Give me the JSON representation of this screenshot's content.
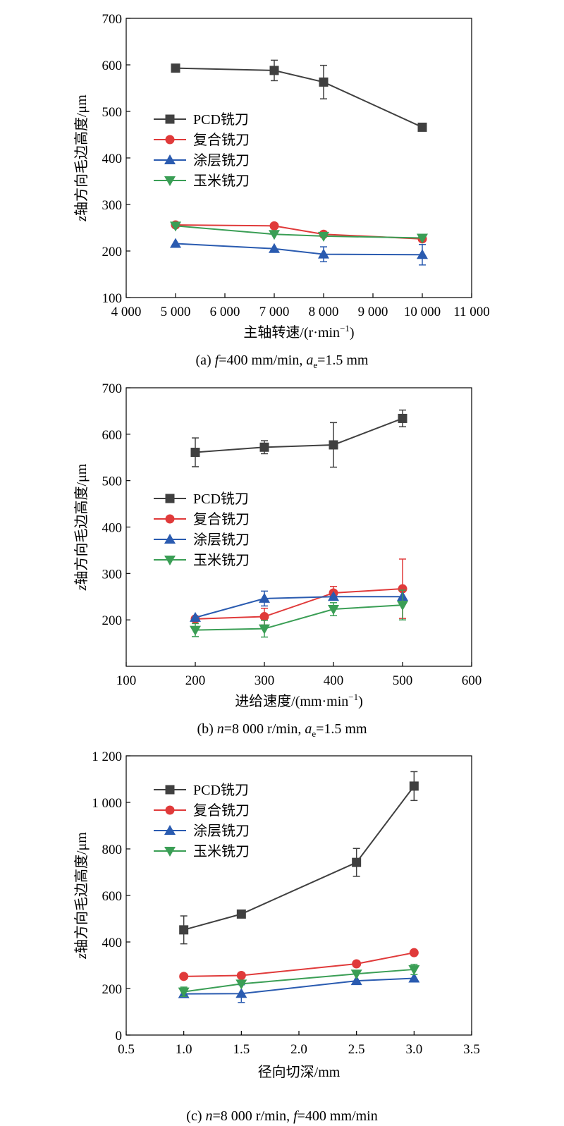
{
  "chart_data": [
    {
      "type": "line",
      "xlabel": "主轴转速/(r·min",
      "xlabel_sup": "−1",
      "xlabel_close": ")",
      "ylabel_italic": "z",
      "ylabel": "轴方向毛边高度/μm",
      "caption": {
        "prefix": "(a) ",
        "parts": [
          {
            "t": "f",
            "i": true
          },
          {
            "t": "=400 mm/min, "
          },
          {
            "t": "a",
            "i": true
          },
          {
            "t": "e",
            "sub": true
          },
          {
            "t": "=1.5 mm"
          }
        ]
      },
      "xlim": [
        4000,
        11000
      ],
      "ylim": [
        100,
        700
      ],
      "xticks": [
        4000,
        5000,
        6000,
        7000,
        8000,
        9000,
        10000,
        11000
      ],
      "xtick_labels": [
        "4 000",
        "5 000",
        "6 000",
        "7 000",
        "8 000",
        "9 000",
        "10 000",
        "11 000"
      ],
      "yticks": [
        100,
        200,
        300,
        400,
        500,
        600,
        700
      ],
      "ytick_labels": [
        "100",
        "200",
        "300",
        "400",
        "500",
        "600",
        "700"
      ],
      "x": [
        5000,
        7000,
        8000,
        10000
      ],
      "series": [
        {
          "name": "PCD铣刀",
          "color": "#404040",
          "marker": "square",
          "values": [
            593,
            588,
            563,
            466
          ],
          "err": [
            0,
            22,
            36,
            0
          ]
        },
        {
          "name": "复合铣刀",
          "color": "#e03a3a",
          "marker": "circle",
          "values": [
            256,
            254,
            236,
            226
          ],
          "err": [
            0,
            0,
            0,
            0
          ]
        },
        {
          "name": "涂层铣刀",
          "color": "#2a5bb0",
          "marker": "triangle-up",
          "values": [
            216,
            205,
            193,
            192
          ],
          "err": [
            0,
            0,
            16,
            22
          ]
        },
        {
          "name": "玉米铣刀",
          "color": "#3a9e55",
          "marker": "triangle-down",
          "values": [
            254,
            236,
            232,
            228
          ],
          "err": [
            0,
            0,
            0,
            0
          ]
        }
      ],
      "legend": "left-middle"
    },
    {
      "type": "line",
      "xlabel": "进给速度/(mm·min",
      "xlabel_sup": "−1",
      "xlabel_close": ")",
      "ylabel_italic": "z",
      "ylabel": "轴方向毛边高度/μm",
      "caption": {
        "prefix": "(b) ",
        "parts": [
          {
            "t": "n",
            "i": true
          },
          {
            "t": "=8 000 r/min, "
          },
          {
            "t": "a",
            "i": true
          },
          {
            "t": "e",
            "sub": true
          },
          {
            "t": "=1.5 mm"
          }
        ]
      },
      "xlim": [
        100,
        600
      ],
      "ylim": [
        100,
        700
      ],
      "xticks": [
        100,
        200,
        300,
        400,
        500,
        600
      ],
      "xtick_labels": [
        "100",
        "200",
        "300",
        "400",
        "500",
        "600"
      ],
      "yticks": [
        200,
        300,
        400,
        500,
        600,
        700
      ],
      "ytick_labels": [
        "200",
        "300",
        "400",
        "500",
        "600",
        "700"
      ],
      "x": [
        200,
        300,
        400,
        500
      ],
      "series": [
        {
          "name": "PCD铣刀",
          "color": "#404040",
          "marker": "square",
          "values": [
            561,
            572,
            577,
            634
          ],
          "err": [
            31,
            14,
            48,
            18
          ]
        },
        {
          "name": "复合铣刀",
          "color": "#e03a3a",
          "marker": "circle",
          "values": [
            202,
            207,
            258,
            267
          ],
          "err": [
            0,
            18,
            14,
            64
          ]
        },
        {
          "name": "涂层铣刀",
          "color": "#2a5bb0",
          "marker": "triangle-up",
          "values": [
            205,
            246,
            250,
            250
          ],
          "err": [
            0,
            16,
            0,
            0
          ]
        },
        {
          "name": "玉米铣刀",
          "color": "#3a9e55",
          "marker": "triangle-down",
          "values": [
            178,
            181,
            223,
            232
          ],
          "err": [
            14,
            18,
            14,
            32
          ]
        }
      ],
      "legend": "left-middle"
    },
    {
      "type": "line",
      "xlabel": "径向切深/mm",
      "xlabel_sup": "",
      "xlabel_close": "",
      "ylabel_italic": "z",
      "ylabel": "轴方向毛边高度/μm",
      "caption": {
        "prefix": "(c) ",
        "parts": [
          {
            "t": "n",
            "i": true
          },
          {
            "t": "=8 000 r/min, "
          },
          {
            "t": "f",
            "i": true
          },
          {
            "t": "=400 mm/min"
          }
        ]
      },
      "xlim": [
        0.5,
        3.5
      ],
      "ylim": [
        0,
        1200
      ],
      "xticks": [
        0.5,
        1.0,
        1.5,
        2.0,
        2.5,
        3.0,
        3.5
      ],
      "xtick_labels": [
        "0.5",
        "1.0",
        "1.5",
        "2.0",
        "2.5",
        "3.0",
        "3.5"
      ],
      "yticks": [
        0,
        200,
        400,
        600,
        800,
        1000,
        1200
      ],
      "ytick_labels": [
        "0",
        "200",
        "400",
        "600",
        "800",
        "1 000",
        "1 200"
      ],
      "x": [
        1.0,
        1.5,
        2.5,
        3.0
      ],
      "series": [
        {
          "name": "PCD铣刀",
          "color": "#404040",
          "marker": "square",
          "values": [
            452,
            520,
            742,
            1070
          ],
          "err": [
            60,
            0,
            60,
            62
          ]
        },
        {
          "name": "复合铣刀",
          "color": "#e03a3a",
          "marker": "circle",
          "values": [
            252,
            256,
            306,
            354
          ],
          "err": [
            0,
            0,
            0,
            0
          ]
        },
        {
          "name": "涂层铣刀",
          "color": "#2a5bb0",
          "marker": "triangle-up",
          "values": [
            177,
            178,
            233,
            244
          ],
          "err": [
            0,
            38,
            0,
            0
          ]
        },
        {
          "name": "玉米铣刀",
          "color": "#3a9e55",
          "marker": "triangle-down",
          "values": [
            186,
            220,
            263,
            282
          ],
          "err": [
            20,
            0,
            0,
            22
          ]
        }
      ],
      "legend": "top-left"
    }
  ]
}
